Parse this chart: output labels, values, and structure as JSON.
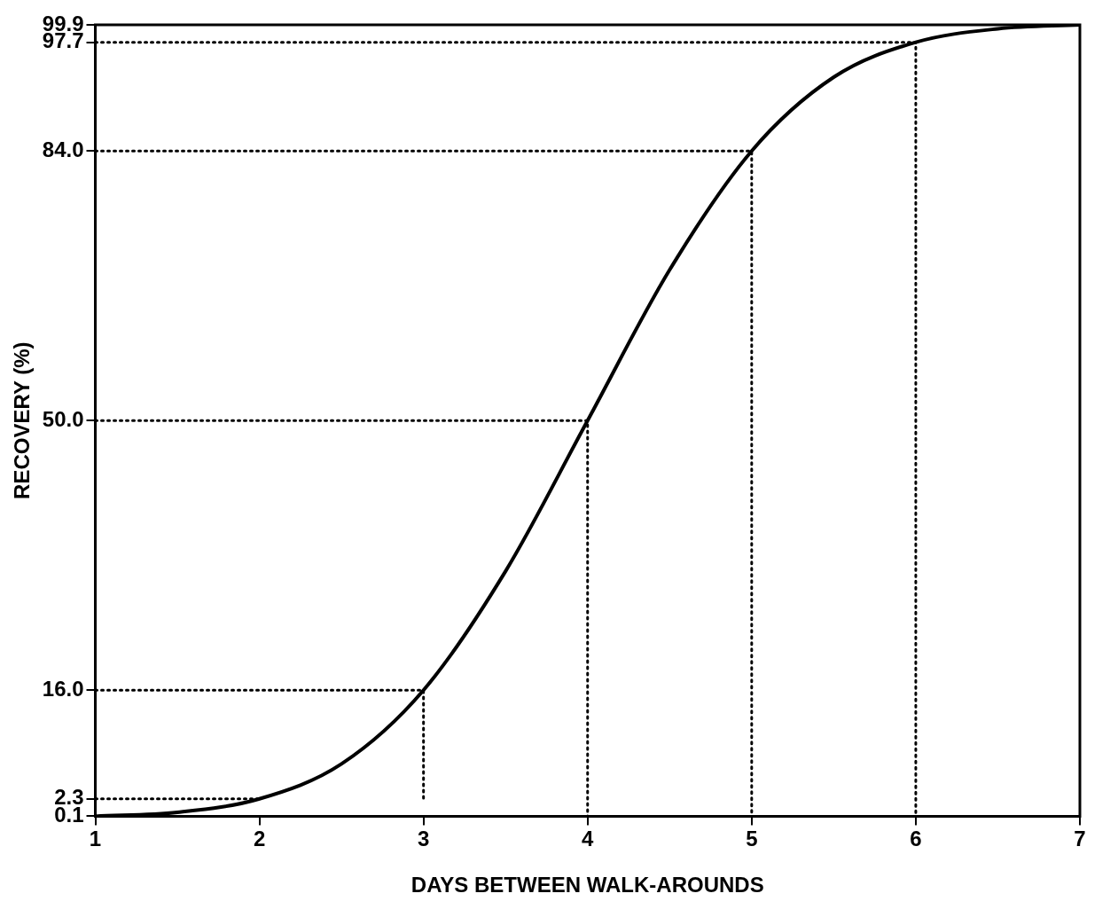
{
  "chart_data": {
    "type": "line",
    "xlabel": "DAYS BETWEEN WALK-AROUNDS",
    "ylabel": "RECOVERY (%)",
    "xlim": [
      1,
      7
    ],
    "xticks": [
      1,
      2,
      3,
      4,
      5,
      6,
      7
    ],
    "ylim": [
      0.1,
      99.9
    ],
    "yticks": [
      0.1,
      2.3,
      {
        "value": 16,
        "label": "16.0"
      },
      {
        "value": 50,
        "label": "50.0"
      },
      {
        "value": 84,
        "label": "84.0"
      },
      97.7,
      99.9
    ],
    "grid": false,
    "legend": false,
    "marker": "none",
    "series": [
      {
        "color": "#000000",
        "line_style": "solid",
        "x": [
          1,
          1.5,
          2,
          2.5,
          3,
          3.5,
          4,
          4.5,
          5,
          5.5,
          6,
          6.5,
          7
        ],
        "values": [
          0.1,
          0.6,
          2.3,
          6.7,
          16,
          31,
          50,
          69,
          84,
          93.3,
          97.7,
          99.4,
          99.9
        ]
      },
      {
        "color": "#000000",
        "line_style": "dotted",
        "x": [
          1,
          2
        ],
        "values": [
          2.3,
          2.3
        ]
      },
      {
        "color": "#000000",
        "line_style": "dotted",
        "x": [
          1,
          3,
          3
        ],
        "values": [
          16,
          16,
          2.3
        ]
      },
      {
        "color": "#000000",
        "line_style": "dotted",
        "x": [
          1,
          4,
          4
        ],
        "values": [
          50,
          50,
          0.1
        ]
      },
      {
        "color": "#000000",
        "line_style": "dotted",
        "x": [
          1,
          5,
          5
        ],
        "values": [
          84,
          84,
          0.1
        ]
      },
      {
        "color": "#000000",
        "line_style": "dotted",
        "x": [
          1,
          6,
          6
        ],
        "values": [
          97.7,
          97.7,
          0.1
        ]
      }
    ]
  }
}
